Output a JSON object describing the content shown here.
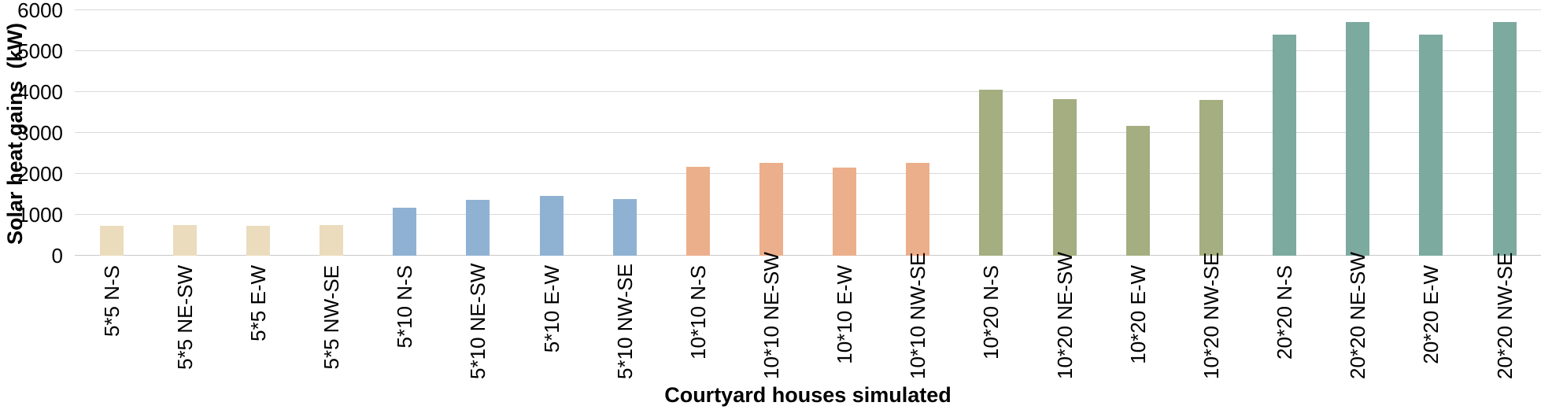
{
  "chart_data": {
    "type": "bar",
    "title": "",
    "xlabel": "Courtyard houses simulated",
    "ylabel": "Solar heat gains  (kW)",
    "ylim": [
      0,
      6000
    ],
    "yticks": [
      0,
      1000,
      2000,
      3000,
      4000,
      5000,
      6000
    ],
    "grid": true,
    "legend": "none",
    "categories": [
      "5*5 N-S",
      "5*5 NE-SW",
      "5*5 E-W",
      "5*5 NW-SE",
      "5*10 N-S",
      "5*10 NE-SW",
      "5*10 E-W",
      "5*10 NW-SE",
      "10*10 N-S",
      "10*10 NE-SW",
      "10*10 E-W",
      "10*10 NW-SE",
      "10*20 N-S",
      "10*20 NE-SW",
      "10*20 E-W",
      "10*20 NW-SE",
      "20*20 N-S",
      "20*20 NE-SW",
      "20*20 E-W",
      "20*20 NW-SE"
    ],
    "values": [
      740,
      750,
      740,
      750,
      1170,
      1370,
      1460,
      1380,
      2170,
      2260,
      2160,
      2260,
      4060,
      3820,
      3170,
      3810,
      5410,
      5720,
      5410,
      5710
    ],
    "groups": [
      {
        "name": "5*5",
        "color": "#EBDCBD"
      },
      {
        "name": "5*10",
        "color": "#8FB2D3"
      },
      {
        "name": "10*10",
        "color": "#ECAF8B"
      },
      {
        "name": "10*20",
        "color": "#A4AE80"
      },
      {
        "name": "20*20",
        "color": "#7CAA9F"
      }
    ],
    "bars_per_group": 4
  },
  "colors": {
    "background": "#FFFFFF",
    "gridline": "#D9D9D9",
    "axis_line": "#C9C9C9",
    "text": "#000000"
  }
}
